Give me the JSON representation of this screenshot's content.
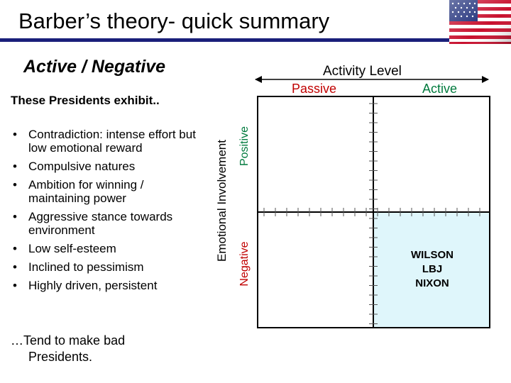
{
  "header": {
    "title": "Barber’s theory- quick summary",
    "flag_icon": "us-flag-icon"
  },
  "subtitle": "Active / Negative",
  "exhibit_heading": "These Presidents exhibit..",
  "bullet_symbol": "•",
  "traits": [
    "Contradiction: intense effort but low emotional reward",
    "Compulsive natures",
    "Ambition for winning / maintaining power",
    "Aggressive stance towards environment",
    "Low self-esteem",
    "Inclined to pessimism",
    "Highly driven, persistent"
  ],
  "conclusion": {
    "line1": "…Tend to make bad",
    "line2": "Presidents."
  },
  "axes": {
    "horizontal_title": "Activity Level",
    "horizontal_left": "Passive",
    "horizontal_right": "Active",
    "vertical_title": "Emotional Involvement",
    "vertical_top": "Positive",
    "vertical_bottom": "Negative"
  },
  "quadrant": {
    "highlighted": "active-negative",
    "highlight_color": "#dff6fb",
    "presidents": [
      "WILSON",
      "LBJ",
      "NIXON"
    ]
  },
  "colors": {
    "title_rule": "#1a1f7a",
    "passive": "#c00000",
    "active": "#007a3d",
    "positive": "#007a3d",
    "negative": "#c00000"
  }
}
